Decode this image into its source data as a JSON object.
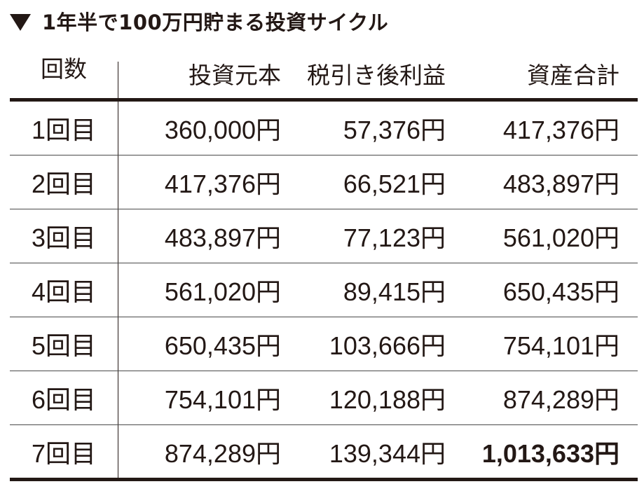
{
  "title": "1年半で100万円貯まる投資サイクル",
  "header": {
    "round": "回数",
    "principal": "投資元本",
    "profit": "税引き後利益",
    "total": "資産合計"
  },
  "rows": [
    {
      "round": "1回目",
      "principal": "360,000円",
      "profit": "57,376円",
      "total": "417,376円"
    },
    {
      "round": "2回目",
      "principal": "417,376円",
      "profit": "66,521円",
      "total": "483,897円"
    },
    {
      "round": "3回目",
      "principal": "483,897円",
      "profit": "77,123円",
      "total": "561,020円"
    },
    {
      "round": "4回目",
      "principal": "561,020円",
      "profit": "89,415円",
      "total": "650,435円"
    },
    {
      "round": "5回目",
      "principal": "650,435円",
      "profit": "103,666円",
      "total": "754,101円"
    },
    {
      "round": "6回目",
      "principal": "754,101円",
      "profit": "120,188円",
      "total": "874,289円"
    },
    {
      "round": "7回目",
      "principal": "874,289円",
      "profit": "139,344円",
      "total": "1,013,633円"
    }
  ]
}
